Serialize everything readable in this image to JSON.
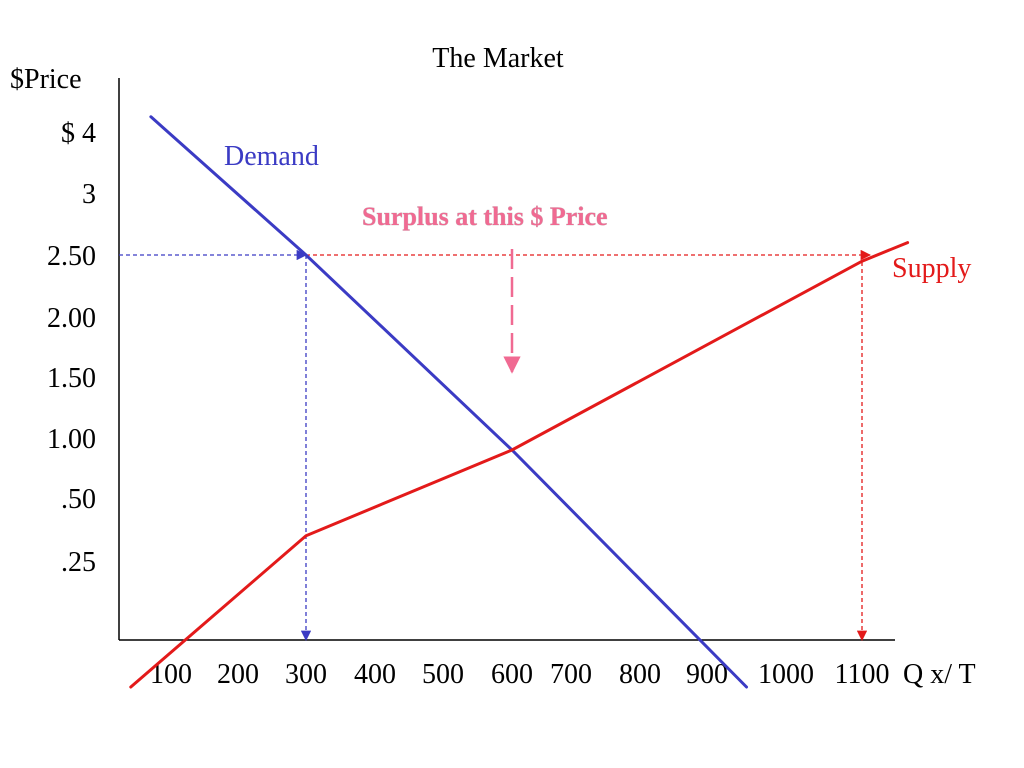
{
  "chart_data": {
    "type": "line",
    "title": "The Market",
    "ylabel": "$Price",
    "xlabel": "Q x/ T",
    "y_ticks": [
      "$ 4",
      "3",
      "2.50",
      "2.00",
      "1.50",
      "1.00",
      ".50",
      ".25"
    ],
    "x_ticks": [
      "100",
      "200",
      "300",
      "400",
      "500",
      "600",
      "700",
      "800",
      "900",
      "1000",
      "1100"
    ],
    "series": [
      {
        "name": "Demand",
        "color": "#3b3bc4",
        "points": [
          {
            "x": 70,
            "y": 4.25
          },
          {
            "x": 300,
            "y": 2.5
          },
          {
            "x": 600,
            "y": 0.9
          },
          {
            "x": 950,
            "y": -0.25
          }
        ]
      },
      {
        "name": "Supply",
        "color": "#e31a1a",
        "points": [
          {
            "x": 40,
            "y": -0.25
          },
          {
            "x": 300,
            "y": 0.35
          },
          {
            "x": 600,
            "y": 0.9
          },
          {
            "x": 1100,
            "y": 2.45
          },
          {
            "x": 1160,
            "y": 2.6
          }
        ]
      }
    ],
    "annotations": [
      {
        "text": "Surplus at this $ Price",
        "color": "#f06a92"
      }
    ],
    "guides": {
      "price": 2.5,
      "quantity_demanded": 300,
      "quantity_supplied": 1100,
      "price_line_color": "#3b3bc4",
      "surplus_line_color": "#e31a1a",
      "annotation_arrow_color": "#f06a92"
    },
    "legend": "none",
    "grid": false
  }
}
